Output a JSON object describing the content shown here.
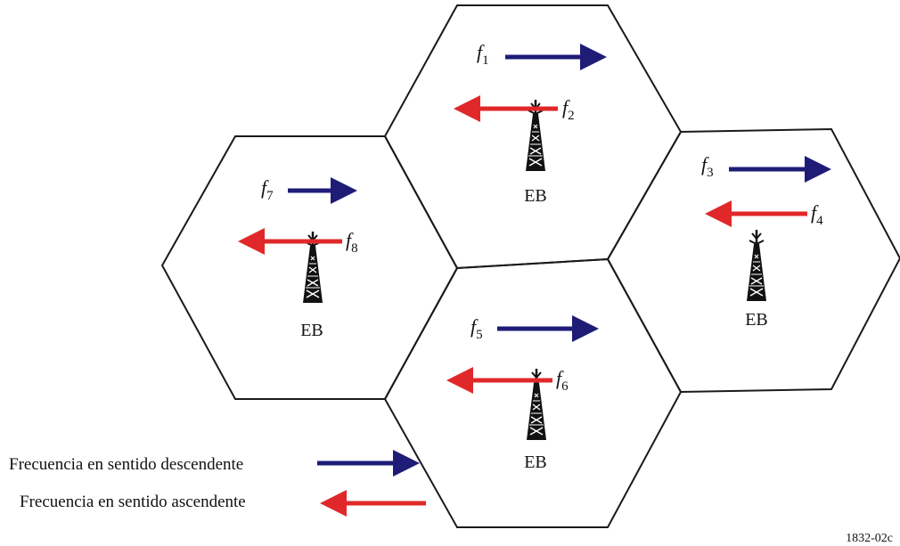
{
  "colors": {
    "downlink": "#1f1c78",
    "uplink": "#e0282a",
    "cell_border": "#1a1a1a",
    "tower": "#111111"
  },
  "cells": [
    {
      "id": "top",
      "tower_label": "EB",
      "down": {
        "letter": "f",
        "sub": "1"
      },
      "up": {
        "letter": "f",
        "sub": "2"
      }
    },
    {
      "id": "right",
      "tower_label": "EB",
      "down": {
        "letter": "f",
        "sub": "3"
      },
      "up": {
        "letter": "f",
        "sub": "4"
      }
    },
    {
      "id": "center",
      "tower_label": "EB",
      "down": {
        "letter": "f",
        "sub": "5"
      },
      "up": {
        "letter": "f",
        "sub": "6"
      }
    },
    {
      "id": "left",
      "tower_label": "EB",
      "down": {
        "letter": "f",
        "sub": "7"
      },
      "up": {
        "letter": "f",
        "sub": "8"
      }
    }
  ],
  "legend": {
    "downlink_label": "Frecuencia en sentido descendente",
    "uplink_label": "Frecuencia en sentido ascendente"
  },
  "figure_id": "1832-02c",
  "icons": {
    "tower": "cell-tower-icon",
    "down_arrow": "right-arrow-icon",
    "up_arrow": "left-arrow-icon"
  }
}
